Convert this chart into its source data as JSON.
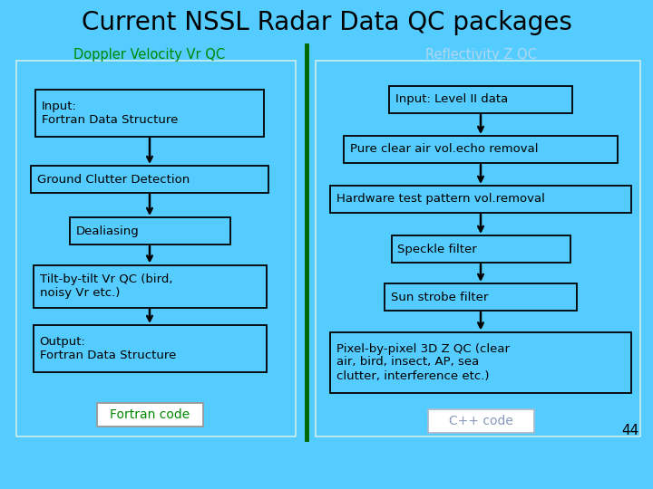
{
  "title": "Current NSSL Radar Data QC packages",
  "title_color": "#000000",
  "title_fontsize": 20,
  "bg_color": "#55CCFF",
  "divider_color": "#006600",
  "left_header": "Doppler Velocity Vr QC",
  "left_header_color": "#008800",
  "right_header": "Reflectivity Z QC",
  "right_header_color": "#B0D8F0",
  "page_number": "44",
  "left_boxes": [
    "Input:\nFortran Data Structure",
    "Ground Clutter Detection",
    "Dealiasing",
    "Tilt-by-tilt Vr QC (bird,\nnoisy Vr etc.)",
    "Output:\nFortran Data Structure"
  ],
  "left_footer": "Fortran code",
  "left_footer_color": "#008800",
  "right_boxes": [
    "Input: Level II data",
    "Pure clear air vol.echo removal",
    "Hardware test pattern vol.removal",
    "Speckle filter",
    "Sun strobe filter",
    "Pixel-by-pixel 3D Z QC (clear\nair, bird, insect, AP, sea\nclutter, interference etc.)"
  ],
  "right_footer": "C++ code",
  "right_footer_color": "#8899BB",
  "box_facecolor": "#55CCFF",
  "box_edgecolor": "#000000",
  "box_text_color": "#000000",
  "outer_box_color": "#CCEEEE",
  "arrow_color": "#000000"
}
